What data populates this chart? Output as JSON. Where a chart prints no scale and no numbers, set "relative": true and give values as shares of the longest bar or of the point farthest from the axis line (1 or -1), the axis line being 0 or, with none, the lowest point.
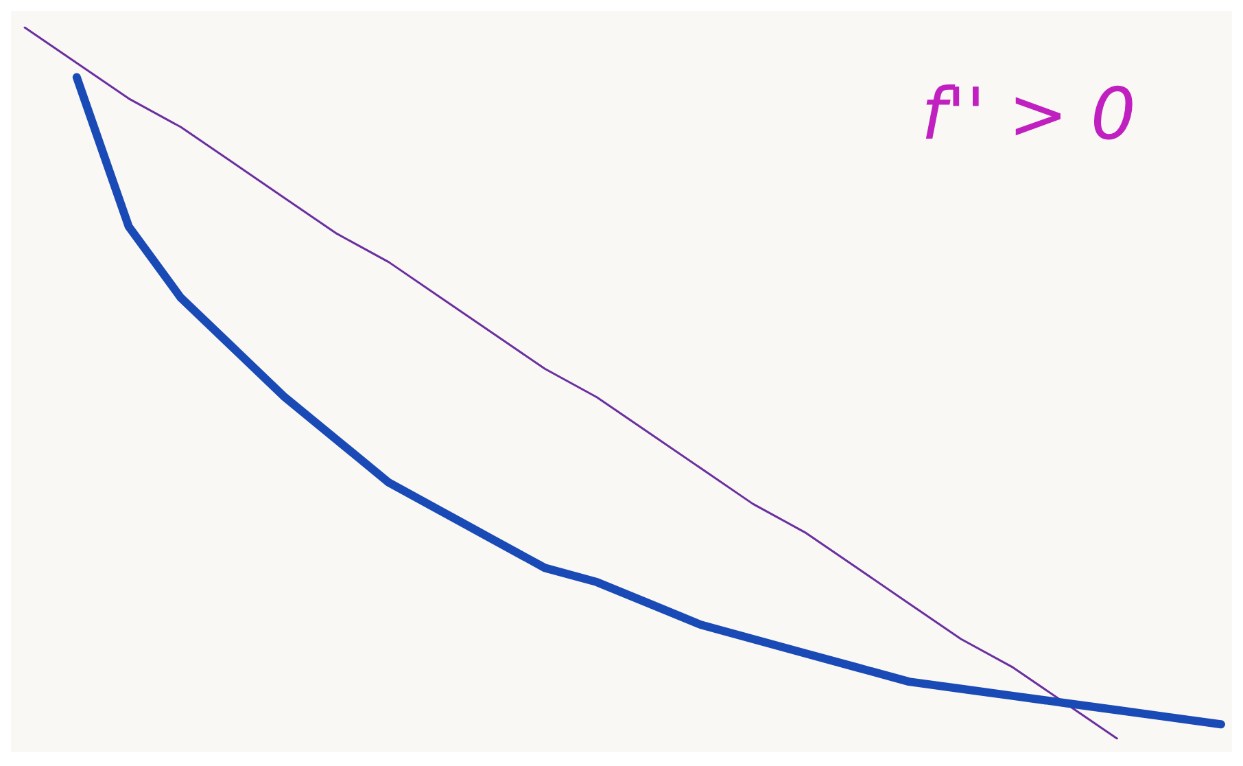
{
  "chart_data": {
    "type": "line",
    "relative": true,
    "marker": "none",
    "line_style": "solid",
    "grid": false,
    "annotations": [
      "f'' > 0"
    ],
    "categories": [
      null,
      null,
      null,
      null,
      null,
      null,
      null,
      null,
      null,
      null,
      null,
      null,
      null,
      null,
      null,
      null,
      null,
      null,
      null,
      null,
      null,
      null,
      null,
      null
    ],
    "series": [
      {
        "color": "#1a4ab5",
        "values": [
          null,
          0.93,
          0.72,
          0.62,
          0.55,
          0.48,
          0.42,
          0.36,
          0.32,
          0.28,
          0.24,
          0.22,
          0.19,
          0.16,
          0.14,
          0.12,
          0.1,
          0.08,
          0.07,
          0.06,
          0.05,
          0.04,
          0.03,
          0.02
        ]
      },
      {
        "color": "#6a2fa0",
        "values": [
          1,
          0.95,
          0.9,
          0.86,
          0.81,
          0.76,
          0.71,
          0.67,
          0.62,
          0.57,
          0.52,
          0.48,
          0.43,
          0.38,
          0.33,
          0.29,
          0.24,
          0.19,
          0.14,
          0.1,
          0.05,
          0,
          null,
          null
        ]
      }
    ]
  }
}
